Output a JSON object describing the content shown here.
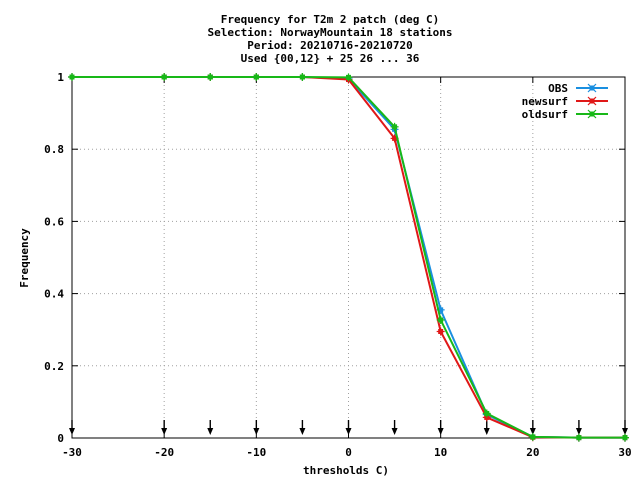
{
  "chart_data": {
    "type": "line",
    "title_lines": [
      "Frequency  for T2m 2 patch (deg C)",
      "Selection: NorwayMountain     18 stations",
      "Period: 20210716-20210720",
      "Used {00,12} + 25 26 ... 36"
    ],
    "xlabel": "thresholds C)",
    "ylabel": "Frequency",
    "xlim": [
      -30,
      30
    ],
    "ylim": [
      0,
      1
    ],
    "xticks": [
      -30,
      -20,
      -10,
      0,
      10,
      20,
      30
    ],
    "xtick_labels": [
      "-30",
      "-20",
      "-10",
      "0",
      "10",
      "20",
      "30"
    ],
    "yticks": [
      0,
      0.2,
      0.4,
      0.6,
      0.8,
      1
    ],
    "ytick_labels": [
      "0",
      "0.2",
      "0.4",
      "0.6",
      "0.8",
      "1"
    ],
    "grid": true,
    "legend_position": "top-right",
    "threshold_markers": [
      -30,
      -20,
      -15,
      -10,
      -5,
      0,
      5,
      10,
      15,
      20,
      25,
      30
    ],
    "x": [
      -30,
      -20,
      -15,
      -10,
      -5,
      0,
      5,
      10,
      15,
      20,
      25,
      30
    ],
    "series": [
      {
        "name": "OBS",
        "color": "#1a8fe0",
        "values": [
          1,
          1,
          1,
          1,
          1,
          0.995,
          0.855,
          0.355,
          0.065,
          0.003,
          0.001,
          0.001
        ]
      },
      {
        "name": "newsurf",
        "color": "#e01818",
        "values": [
          1,
          1,
          1,
          1,
          1,
          0.993,
          0.83,
          0.295,
          0.057,
          0.002,
          0.001,
          0.001
        ]
      },
      {
        "name": "oldsurf",
        "color": "#18b818",
        "values": [
          1,
          1,
          1,
          1,
          1,
          0.999,
          0.862,
          0.327,
          0.068,
          0.003,
          0.001,
          0.001
        ]
      }
    ]
  }
}
